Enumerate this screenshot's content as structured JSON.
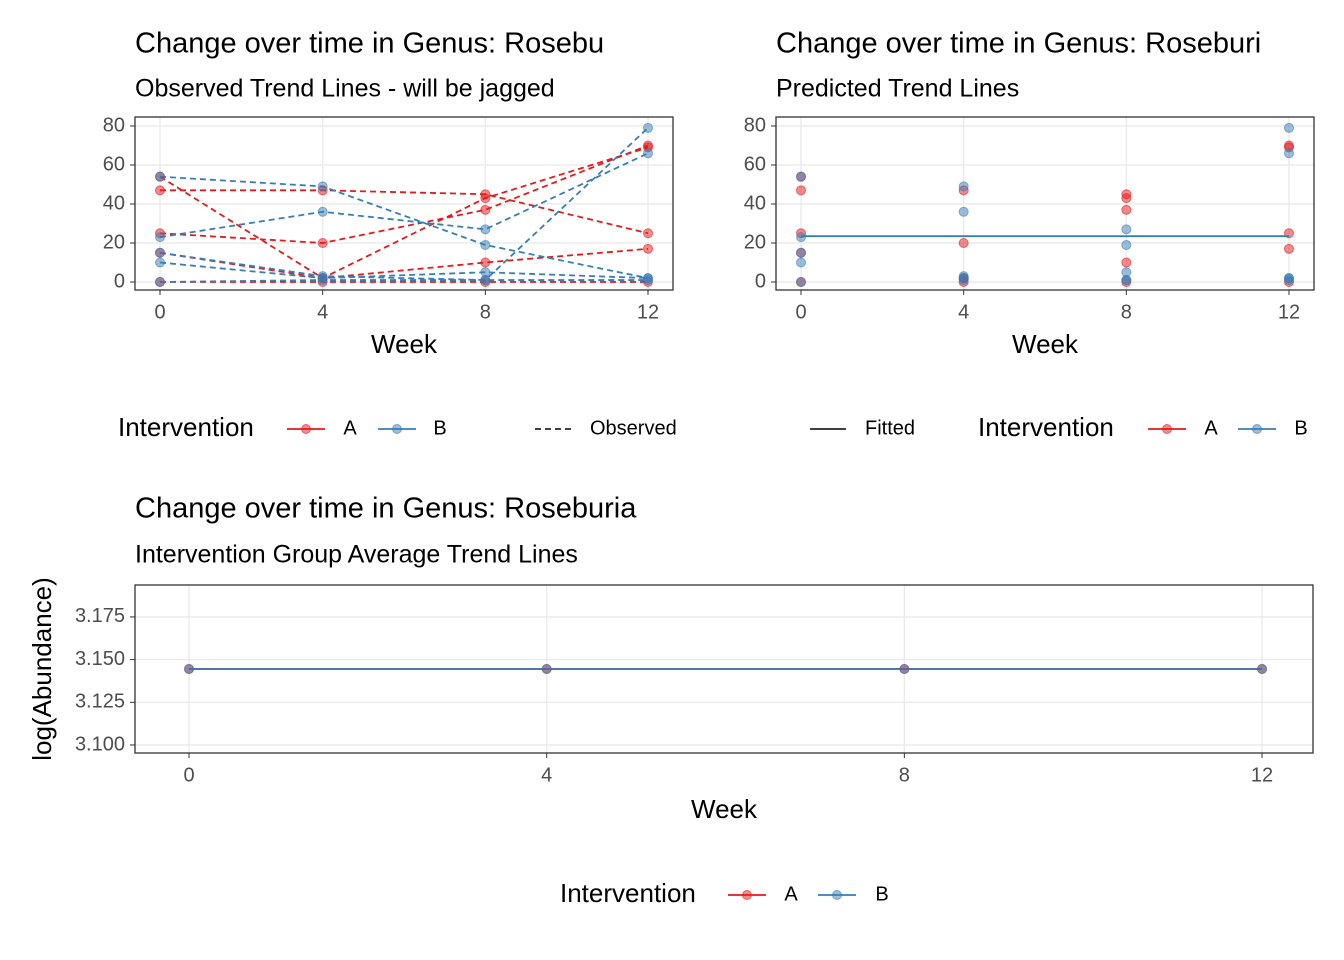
{
  "chart_data": [
    {
      "type": "line",
      "title": "Change over time in Genus: Rosebu",
      "subtitle": "Observed Trend Lines - will be jagged",
      "x_label": "Week",
      "x": [
        0,
        4,
        8,
        12
      ],
      "xlim": [
        -0.615,
        12.615
      ],
      "xticks": [
        0,
        4,
        8,
        12
      ],
      "ylim": [
        -4.1,
        84.6
      ],
      "yticks": [
        0,
        20,
        40,
        60,
        80
      ],
      "grid": true,
      "line_style": "dashed",
      "legend_title": "Intervention",
      "legend_position": "bottom",
      "linetype_legend": "Observed",
      "series": [
        {
          "name": "A",
          "color": "#e41a1c",
          "subjects": [
            [
              54,
              2,
              43,
              69
            ],
            [
              47,
              47,
              45,
              25
            ],
            [
              25,
              20,
              37,
              70
            ],
            [
              15,
              2,
              10,
              17
            ],
            [
              0,
              0,
              0,
              0
            ]
          ]
        },
        {
          "name": "B",
          "color": "#377eb8",
          "subjects": [
            [
              54,
              49,
              19,
              2
            ],
            [
              23,
              36,
              27,
              66
            ],
            [
              10,
              2,
              5,
              2
            ],
            [
              0,
              1,
              1,
              79
            ],
            [
              15,
              3,
              1,
              1
            ]
          ]
        }
      ]
    },
    {
      "type": "scatter",
      "title": "Change over time in Genus: Roseburi",
      "subtitle": "Predicted Trend Lines",
      "x_label": "Week",
      "x": [
        0,
        4,
        8,
        12
      ],
      "xlim": [
        -0.615,
        12.615
      ],
      "xticks": [
        0,
        4,
        8,
        12
      ],
      "ylim": [
        -4.1,
        84.6
      ],
      "yticks": [
        0,
        20,
        40,
        60,
        80
      ],
      "grid": true,
      "legend_title": "Intervention",
      "legend_position": "bottom",
      "fitted": {
        "name": "Fitted",
        "color": "#377eb8",
        "values": [
          23.5,
          23.5,
          23.5,
          23.5
        ]
      },
      "series": [
        {
          "name": "A",
          "color": "#e41a1c",
          "subjects": [
            [
              54,
              2,
              43,
              69
            ],
            [
              47,
              47,
              45,
              25
            ],
            [
              25,
              20,
              37,
              70
            ],
            [
              15,
              2,
              10,
              17
            ],
            [
              0,
              0,
              0,
              0
            ]
          ]
        },
        {
          "name": "B",
          "color": "#377eb8",
          "subjects": [
            [
              54,
              49,
              19,
              2
            ],
            [
              23,
              36,
              27,
              66
            ],
            [
              10,
              2,
              5,
              2
            ],
            [
              0,
              1,
              1,
              79
            ],
            [
              15,
              3,
              1,
              1
            ]
          ]
        }
      ]
    },
    {
      "type": "line",
      "title": "Change over time in Genus: Roseburia",
      "subtitle": "Intervention Group Average Trend Lines",
      "x_label": "Week",
      "y_label": "log(Abundance)",
      "x": [
        0,
        4,
        8,
        12
      ],
      "xlim": [
        -0.604,
        12.57
      ],
      "xticks": [
        0,
        4,
        8,
        12
      ],
      "ylim": [
        3.0953,
        3.1937
      ],
      "yticks": [
        {
          "value": 3.1,
          "label": "3.100"
        },
        3.125,
        {
          "value": 3.15,
          "label": "3.150"
        },
        3.175
      ],
      "grid": true,
      "legend_title": "Intervention",
      "legend_position": "bottom",
      "series": [
        {
          "name": "A",
          "color": "#e41a1c",
          "values": [
            3.1445,
            3.1445,
            3.1445,
            3.1445
          ]
        },
        {
          "name": "B",
          "color": "#377eb8",
          "values": [
            3.1445,
            3.1445,
            3.1445,
            3.1445
          ]
        }
      ]
    }
  ]
}
